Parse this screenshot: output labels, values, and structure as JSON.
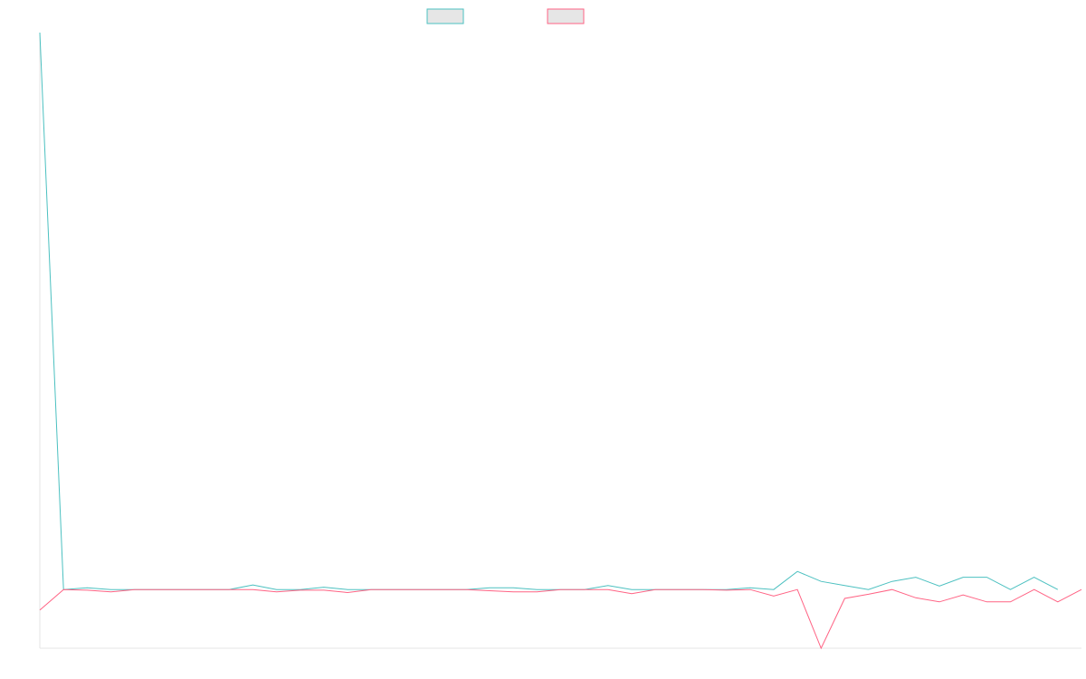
{
  "chart_data": {
    "type": "line",
    "title": "",
    "xlabel": "",
    "ylabel": "",
    "grid": false,
    "legend_placement": "top-center",
    "series": [
      {
        "color": "#4bc0c0",
        "values": [
          100,
          5,
          5.3,
          5,
          5,
          5,
          5,
          5,
          5,
          5.8,
          5,
          5,
          5.4,
          5,
          5,
          5,
          5,
          5,
          5,
          5.3,
          5.3,
          5,
          5,
          5,
          5.7,
          5,
          5,
          5,
          5,
          5,
          5.3,
          5,
          8.1,
          6.4,
          5.7,
          5,
          6.4,
          7.1,
          5.6,
          7.1,
          7.1,
          5,
          7.1,
          5
        ]
      },
      {
        "color": "#ff6384",
        "values": [
          1.5,
          5,
          4.9,
          4.6,
          5,
          5,
          5,
          5,
          5,
          5,
          4.6,
          4.9,
          4.9,
          4.5,
          5,
          5,
          5,
          5,
          5,
          4.8,
          4.6,
          4.6,
          5,
          5,
          5,
          4.3,
          5,
          5,
          5,
          4.9,
          5,
          3.9,
          5,
          -5,
          3.5,
          4.2,
          5,
          3.6,
          2.9,
          4.1,
          2.9,
          2.9,
          5,
          2.9,
          5
        ]
      }
    ]
  }
}
